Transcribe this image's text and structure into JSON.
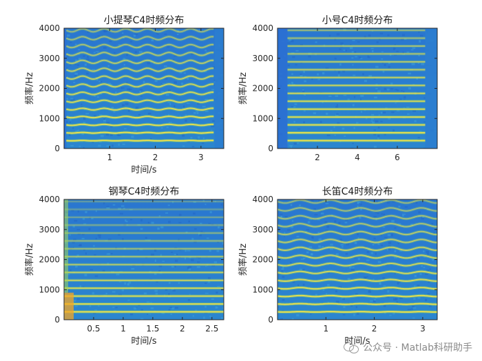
{
  "chart_data": [
    {
      "type": "heatmap",
      "title": "小提琴C4时频分布",
      "xlabel": "时间/s",
      "ylabel": "频率/Hz",
      "xlim": [
        0,
        3.5
      ],
      "ylim": [
        0,
        4000
      ],
      "xticks": [
        1,
        2,
        3
      ],
      "yticks": [
        0,
        1000,
        2000,
        3000,
        4000
      ],
      "fundamental_hz": 262,
      "sound_span_s": [
        0.05,
        3.3
      ],
      "vibrato": true,
      "colormap": "parula"
    },
    {
      "type": "heatmap",
      "title": "小号C4时频分布",
      "xlabel": "",
      "ylabel": "频率/Hz",
      "xlim": [
        0,
        8
      ],
      "ylim": [
        0,
        4000
      ],
      "xticks": [
        2,
        4,
        6
      ],
      "yticks": [
        0,
        1000,
        2000,
        3000,
        4000
      ],
      "fundamental_hz": 262,
      "sound_span_s": [
        0.5,
        7.4
      ],
      "vibrato": false,
      "colormap": "parula"
    },
    {
      "type": "heatmap",
      "title": "钢琴C4时频分布",
      "xlabel": "时间/s",
      "ylabel": "频率/Hz",
      "xlim": [
        0,
        2.7
      ],
      "ylim": [
        0,
        4000
      ],
      "xticks": [
        0.5,
        1,
        1.5,
        2,
        2.5
      ],
      "yticks": [
        0,
        1000,
        2000,
        3000,
        4000
      ],
      "fundamental_hz": 262,
      "sound_span_s": [
        0,
        2.7
      ],
      "vibrato": false,
      "colormap": "parula"
    },
    {
      "type": "heatmap",
      "title": "长笛C4时频分布",
      "xlabel": "时间/s",
      "ylabel": "频率/Hz",
      "xlim": [
        0,
        3.3
      ],
      "ylim": [
        0,
        4000
      ],
      "xticks": [
        1,
        2,
        3
      ],
      "yticks": [
        0,
        1000,
        2000,
        3000,
        4000
      ],
      "fundamental_hz": 262,
      "sound_span_s": [
        0,
        3.3
      ],
      "vibrato": true,
      "colormap": "parula"
    }
  ],
  "watermark": {
    "text": "公众号 · Matlab科研助手",
    "icon": "wechat-icon"
  },
  "colors": {
    "background": "#2f7fd4",
    "harmonic": "#f4e24a",
    "attack": "#f5a623"
  }
}
